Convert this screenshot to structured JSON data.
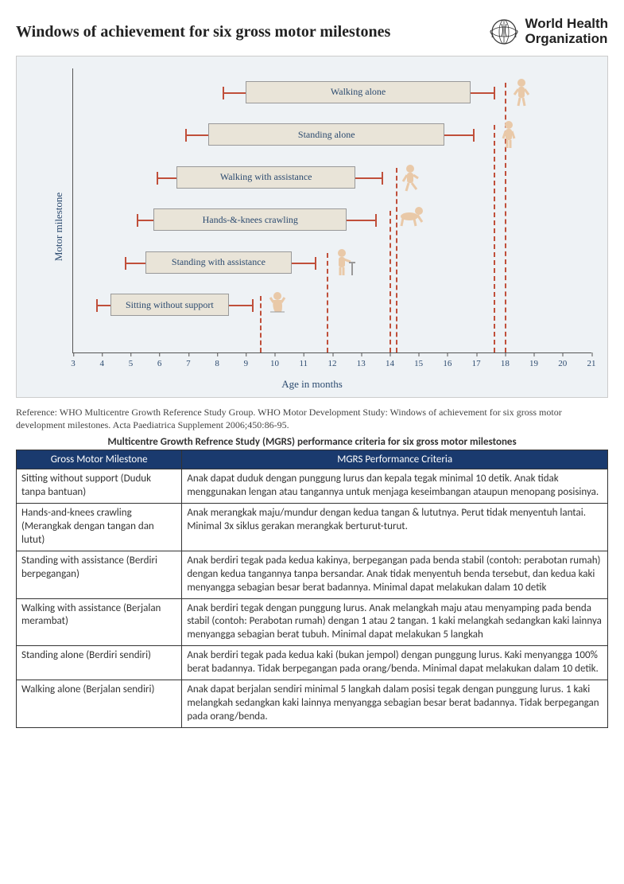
{
  "header": {
    "title": "Windows of achievement for six gross motor milestones",
    "who_line1": "World Health",
    "who_line2": "Organization"
  },
  "chart": {
    "ylabel": "Motor milestone",
    "xlabel": "Age in months",
    "background": "#eef2f5",
    "bar_fill": "#e9e4d8",
    "bar_border": "#999999",
    "whisker_color": "#c04f3a",
    "xmin": 3,
    "xmax": 21,
    "xticks": [
      3,
      4,
      5,
      6,
      7,
      8,
      9,
      10,
      11,
      12,
      13,
      14,
      15,
      16,
      17,
      18,
      19,
      20,
      21
    ],
    "milestones": [
      {
        "label": "Walking alone",
        "p1": 8.2,
        "p5": 9.0,
        "p95": 16.8,
        "p99": 17.6,
        "row": 0,
        "cutoff": 18.0
      },
      {
        "label": "Standing alone",
        "p1": 6.9,
        "p5": 7.7,
        "p95": 15.9,
        "p99": 16.9,
        "row": 1,
        "cutoff": 17.6
      },
      {
        "label": "Walking with assistance",
        "p1": 5.9,
        "p5": 6.6,
        "p95": 12.8,
        "p99": 13.7,
        "row": 2,
        "cutoff": 14.2
      },
      {
        "label": "Hands-&-knees crawling",
        "p1": 5.2,
        "p5": 5.8,
        "p95": 12.5,
        "p99": 13.5,
        "row": 3,
        "cutoff": 14.0
      },
      {
        "label": "Standing with assistance",
        "p1": 4.8,
        "p5": 5.5,
        "p95": 10.6,
        "p99": 11.4,
        "row": 4,
        "cutoff": 11.8
      },
      {
        "label": "Sitting without support",
        "p1": 3.8,
        "p5": 4.3,
        "p95": 8.4,
        "p99": 9.2,
        "row": 5,
        "cutoff": 9.5
      }
    ],
    "row_height_pct": 15,
    "row_top_offset_pct": 3
  },
  "reference": "Reference: WHO Multicentre Growth Reference Study Group. WHO Motor Development Study: Windows of achievement for six gross motor development milestones. Acta Paediatrica Supplement 2006;450:86-95.",
  "table_title": "Multicentre Growth Refrence Study (MGRS) performance criteria for six gross motor milestones",
  "table": {
    "header_bg": "#1a3a6e",
    "header_color": "#ffffff",
    "headers": [
      "Gross Motor Milestone",
      "MGRS Performance Criteria"
    ],
    "rows": [
      {
        "milestone": "Sitting without support (Duduk tanpa bantuan)",
        "criteria": "Anak dapat duduk dengan punggung lurus dan kepala tegak minimal 10 detik. Anak tidak menggunakan lengan atau tangannya untuk menjaga keseimbangan ataupun menopang posisinya."
      },
      {
        "milestone": "Hands-and-knees crawling (Merangkak dengan tangan dan lutut)",
        "criteria": "Anak merangkak maju/mundur dengan kedua tangan & lututnya. Perut tidak menyentuh lantai.  Minimal 3x siklus gerakan merangkak berturut-turut."
      },
      {
        "milestone": "Standing with assistance (Berdiri berpegangan)",
        "criteria": "Anak berdiri tegak pada kedua kakinya, berpegangan pada benda stabil (contoh: perabotan rumah) dengan kedua tangannya tanpa bersandar. Anak tidak menyentuh benda tersebut, dan kedua kaki menyangga sebagian besar berat badannya. Minimal dapat melakukan dalam 10 detik"
      },
      {
        "milestone": "Walking with assistance (Berjalan merambat)",
        "criteria": "Anak berdiri tegak dengan punggung lurus. Anak melangkah maju atau menyamping pada benda stabil (contoh: Perabotan rumah) dengan 1 atau 2 tangan. 1 kaki melangkah sedangkan kaki lainnya menyangga sebagian berat tubuh. Minimal dapat melakukan 5 langkah"
      },
      {
        "milestone": "Standing alone (Berdiri sendiri)",
        "criteria": "Anak berdiri tegak pada kedua kaki (bukan jempol) dengan punggung lurus. Kaki menyangga 100% berat badannya. Tidak berpegangan pada orang/benda. Minimal dapat melakukan dalam 10 detik."
      },
      {
        "milestone": "Walking alone (Berjalan sendiri)",
        "criteria": "Anak dapat berjalan sendiri minimal 5 langkah dalam posisi tegak dengan punggung lurus. 1 kaki melangkah sedangkan kaki lainnya menyangga sebagian besar berat badannya. Tidak berpegangan pada orang/benda."
      }
    ]
  }
}
